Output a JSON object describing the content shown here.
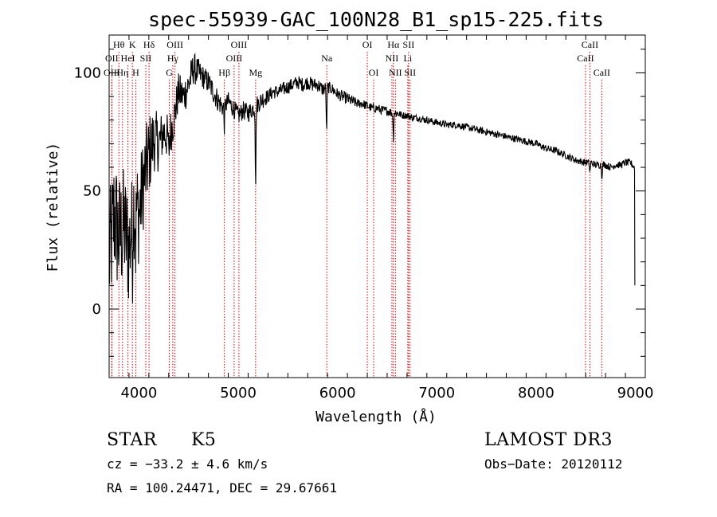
{
  "chart_data": {
    "type": "line",
    "title": "spec-55939-GAC_100N28_B1_sp15-225.fits",
    "xlabel": "Wavelength (Å)",
    "ylabel": "Flux (relative)",
    "xlim": [
      3700,
      9100
    ],
    "ylim": [
      -29,
      116
    ],
    "xticks": [
      4000,
      5000,
      6000,
      7000,
      8000,
      9000
    ],
    "yticks": [
      0,
      50,
      100
    ],
    "grid": false,
    "spectrum_anchors": {
      "x": [
        3700,
        3750,
        3800,
        3850,
        3900,
        3950,
        4000,
        4050,
        4100,
        4150,
        4200,
        4250,
        4300,
        4350,
        4400,
        4450,
        4500,
        4550,
        4600,
        4650,
        4700,
        4750,
        4800,
        4850,
        4900,
        4950,
        5000,
        5050,
        5100,
        5150,
        5200,
        5250,
        5300,
        5350,
        5400,
        5450,
        5500,
        5550,
        5600,
        5650,
        5700,
        5750,
        5800,
        5850,
        5900,
        5950,
        6000,
        6050,
        6100,
        6150,
        6200,
        6250,
        6300,
        6350,
        6400,
        6450,
        6500,
        6550,
        6600,
        6650,
        6700,
        6750,
        6800,
        6900,
        7000,
        7100,
        7200,
        7300,
        7400,
        7500,
        7600,
        7700,
        7800,
        7900,
        8000,
        8100,
        8200,
        8300,
        8400,
        8500,
        8550,
        8600,
        8650,
        8700,
        8750,
        8800,
        8850,
        8900,
        8950,
        8990
      ],
      "y": [
        20,
        40,
        30,
        35,
        25,
        45,
        40,
        55,
        65,
        72,
        70,
        75,
        72,
        80,
        92,
        90,
        95,
        102,
        100,
        98,
        96,
        92,
        88,
        85,
        88,
        85,
        82,
        84,
        83,
        85,
        87,
        89,
        90,
        92,
        92,
        93,
        94,
        95,
        96,
        95,
        96,
        95,
        95,
        93,
        94,
        93,
        91,
        90,
        89,
        88,
        87,
        87,
        86,
        85,
        85,
        84,
        84,
        83,
        83,
        82,
        82,
        81,
        81,
        80,
        79,
        78,
        78,
        77,
        76,
        75,
        74,
        73,
        72,
        71,
        70,
        68,
        67,
        65,
        63,
        62,
        62,
        61,
        61,
        61,
        60,
        61,
        61,
        62,
        62,
        60
      ],
      "noise_amplitude": [
        28,
        28,
        28,
        26,
        26,
        24,
        22,
        20,
        18,
        14,
        12,
        10,
        10,
        9,
        8,
        8,
        8,
        7,
        6,
        5,
        5,
        5,
        5,
        4,
        4,
        4,
        4,
        4,
        4,
        4,
        4,
        4,
        3,
        3,
        3,
        3,
        3,
        3,
        3,
        3,
        3,
        3,
        3,
        3,
        2.5,
        2.5,
        2.5,
        2.5,
        2.5,
        2.5,
        2,
        2,
        2,
        2,
        2,
        2,
        2,
        2,
        2,
        1.5,
        1.5,
        1.5,
        1.5,
        1.5,
        1.5,
        1.5,
        1.5,
        1.5,
        1.5,
        1.5,
        1.5,
        1.5,
        1.5,
        1.5,
        1.5,
        1.5,
        1.5,
        1.5,
        1.5,
        1.5,
        1.5,
        1.5,
        1.5,
        1.5,
        1.5,
        1.5,
        1.5,
        1.5,
        1.5,
        1.5
      ],
      "absorption": [
        {
          "x": 4300,
          "depth": 8
        },
        {
          "x": 4860,
          "depth": 8
        },
        {
          "x": 5175,
          "depth": 36
        },
        {
          "x": 5890,
          "depth": 22
        },
        {
          "x": 6563,
          "depth": 12
        },
        {
          "x": 8542,
          "depth": 5
        },
        {
          "x": 8662,
          "depth": 6
        },
        {
          "x": 3934,
          "depth": 18
        },
        {
          "x": 3968,
          "depth": 15
        }
      ],
      "cutoff": {
        "x": 8995,
        "y": 10
      }
    },
    "line_markers": [
      {
        "name": "Hθ",
        "x": 3798,
        "row": 1
      },
      {
        "name": "OII",
        "x": 3727,
        "row": 2
      },
      {
        "name": "OIII",
        "x": 3727,
        "row": 3
      },
      {
        "name": "K",
        "x": 3934,
        "row": 1
      },
      {
        "name": "HeI",
        "x": 3889,
        "row": 2
      },
      {
        "name": "Hη",
        "x": 3835,
        "row": 3
      },
      {
        "name": "SII",
        "x": 4069,
        "row": 2
      },
      {
        "name": "H",
        "x": 3968,
        "row": 3
      },
      {
        "name": "Hδ",
        "x": 4102,
        "row": 1
      },
      {
        "name": "OIII",
        "x": 4363,
        "row": 1
      },
      {
        "name": "Hγ",
        "x": 4341,
        "row": 2
      },
      {
        "name": "G",
        "x": 4305,
        "row": 3
      },
      {
        "name": "OIII",
        "x": 5007,
        "row": 1
      },
      {
        "name": "OIII",
        "x": 4959,
        "row": 2
      },
      {
        "name": "Hβ",
        "x": 4861,
        "row": 3
      },
      {
        "name": "Mg",
        "x": 5175,
        "row": 3
      },
      {
        "name": "Na",
        "x": 5892,
        "row": 2
      },
      {
        "name": "OI",
        "x": 6300,
        "row": 1
      },
      {
        "name": "OI",
        "x": 6364,
        "row": 3
      },
      {
        "name": "Hα",
        "x": 6563,
        "row": 1
      },
      {
        "name": "SII",
        "x": 6716,
        "row": 1
      },
      {
        "name": "NII",
        "x": 6548,
        "row": 2
      },
      {
        "name": "Li",
        "x": 6708,
        "row": 2
      },
      {
        "name": "NII",
        "x": 6583,
        "row": 3
      },
      {
        "name": "SII",
        "x": 6731,
        "row": 3
      },
      {
        "name": "CaII",
        "x": 8542,
        "row": 1
      },
      {
        "name": "CaII",
        "x": 8498,
        "row": 2
      },
      {
        "name": "CaII",
        "x": 8662,
        "row": 3
      }
    ],
    "colors": {
      "marker": "#cc0000",
      "spectrum": "#000000",
      "axes": "#000000"
    }
  },
  "footer": {
    "class_label": "STAR",
    "subclass": "K5",
    "survey": "LAMOST DR3",
    "cz": "cz = −33.2 ± 4.6 km/s",
    "obs_date": "Obs−Date: 20120112",
    "coords": "RA = 100.24471, DEC =  29.67661"
  }
}
